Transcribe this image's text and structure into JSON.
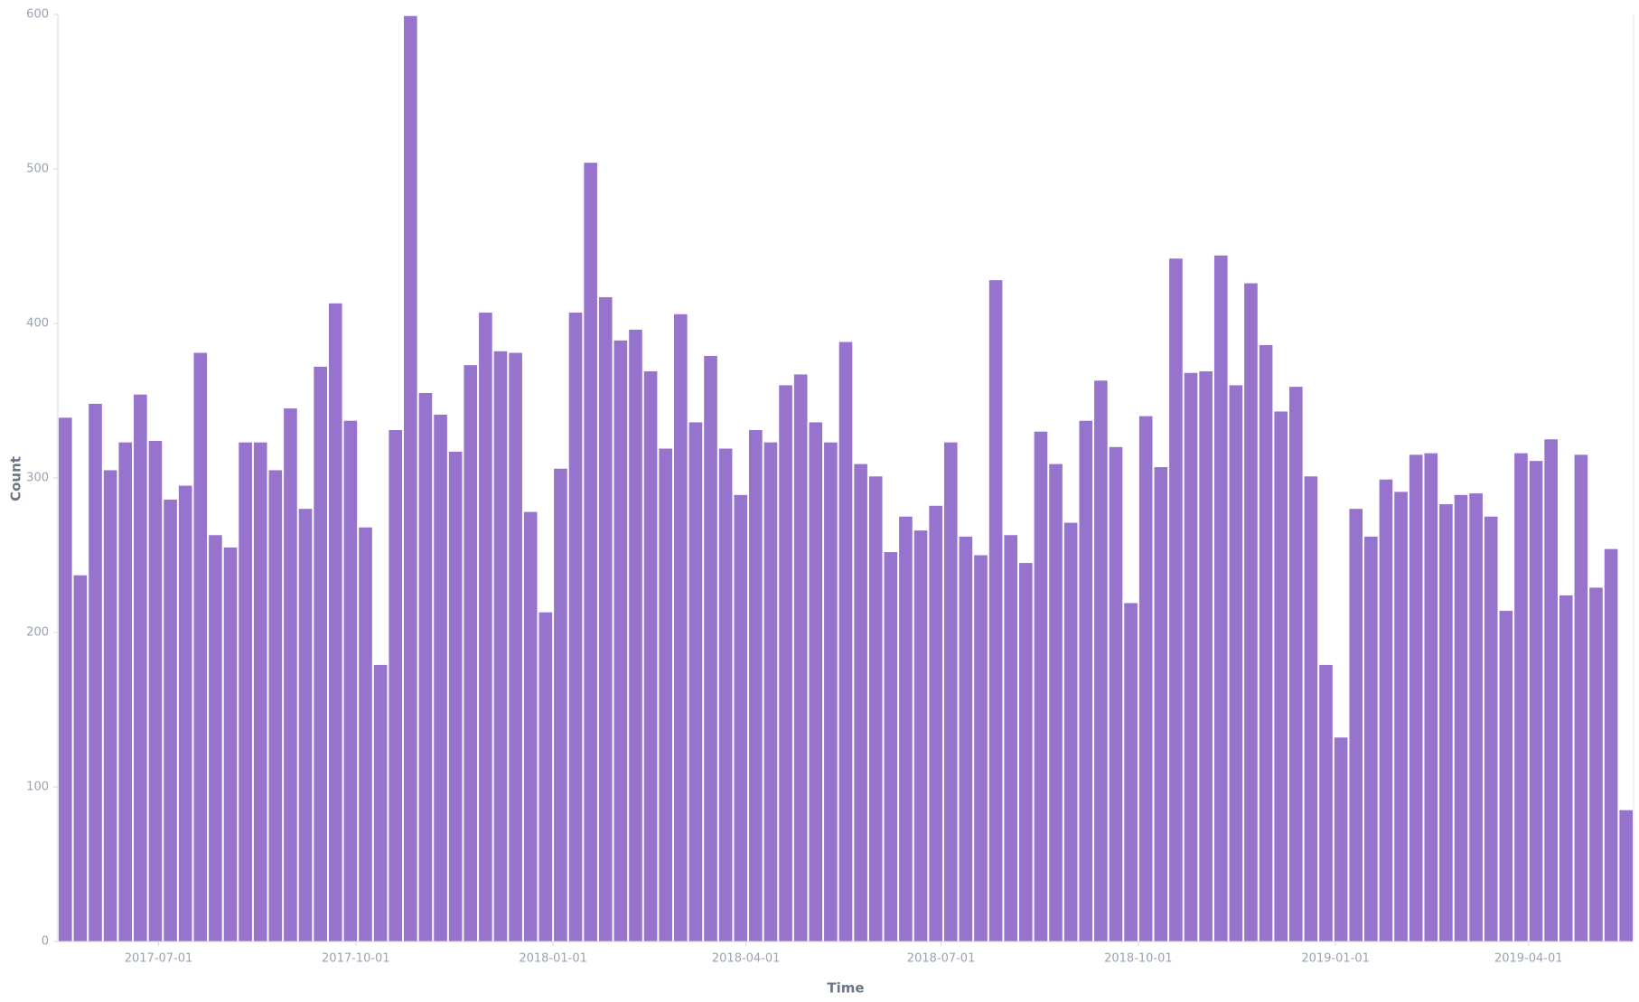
{
  "chart_data": {
    "type": "bar",
    "x_label": "Time",
    "y_label": "Count",
    "color": "#9673cd",
    "x": [
      "2017-05-15",
      "2017-05-22",
      "2017-05-29",
      "2017-06-05",
      "2017-06-12",
      "2017-06-19",
      "2017-06-26",
      "2017-07-03",
      "2017-07-10",
      "2017-07-17",
      "2017-07-24",
      "2017-07-31",
      "2017-08-07",
      "2017-08-14",
      "2017-08-21",
      "2017-08-28",
      "2017-09-04",
      "2017-09-11",
      "2017-09-18",
      "2017-09-25",
      "2017-10-02",
      "2017-10-09",
      "2017-10-16",
      "2017-10-23",
      "2017-10-30",
      "2017-11-06",
      "2017-11-13",
      "2017-11-20",
      "2017-11-27",
      "2017-12-04",
      "2017-12-11",
      "2017-12-18",
      "2017-12-25",
      "2018-01-01",
      "2018-01-08",
      "2018-01-15",
      "2018-01-22",
      "2018-01-29",
      "2018-02-05",
      "2018-02-12",
      "2018-02-19",
      "2018-02-26",
      "2018-03-05",
      "2018-03-12",
      "2018-03-19",
      "2018-03-26",
      "2018-04-02",
      "2018-04-09",
      "2018-04-16",
      "2018-04-23",
      "2018-04-30",
      "2018-05-07",
      "2018-05-14",
      "2018-05-21",
      "2018-05-28",
      "2018-06-04",
      "2018-06-11",
      "2018-06-18",
      "2018-06-25",
      "2018-07-02",
      "2018-07-09",
      "2018-07-16",
      "2018-07-23",
      "2018-07-30",
      "2018-08-06",
      "2018-08-13",
      "2018-08-20",
      "2018-08-27",
      "2018-09-03",
      "2018-09-10",
      "2018-09-17",
      "2018-09-24",
      "2018-10-01",
      "2018-10-08",
      "2018-10-15",
      "2018-10-22",
      "2018-10-29",
      "2018-11-05",
      "2018-11-12",
      "2018-11-19",
      "2018-11-26",
      "2018-12-03",
      "2018-12-10",
      "2018-12-17",
      "2018-12-24",
      "2018-12-31",
      "2019-01-07",
      "2019-01-14",
      "2019-01-21",
      "2019-01-28",
      "2019-02-04",
      "2019-02-11",
      "2019-02-18",
      "2019-02-25",
      "2019-03-04",
      "2019-03-11",
      "2019-03-18",
      "2019-03-25",
      "2019-04-01",
      "2019-04-08",
      "2019-04-15",
      "2019-04-22",
      "2019-04-29",
      "2019-05-06",
      "2019-05-13"
    ],
    "values": [
      339,
      237,
      348,
      305,
      323,
      354,
      324,
      286,
      295,
      381,
      263,
      255,
      323,
      323,
      305,
      345,
      280,
      372,
      413,
      337,
      268,
      179,
      331,
      599,
      355,
      341,
      317,
      373,
      407,
      382,
      381,
      278,
      213,
      306,
      407,
      504,
      417,
      389,
      396,
      369,
      319,
      406,
      336,
      379,
      319,
      289,
      331,
      323,
      360,
      367,
      336,
      323,
      388,
      309,
      301,
      252,
      275,
      266,
      282,
      323,
      262,
      250,
      428,
      263,
      245,
      330,
      309,
      271,
      337,
      363,
      320,
      219,
      340,
      307,
      442,
      368,
      369,
      444,
      360,
      426,
      386,
      343,
      359,
      301,
      179,
      132,
      280,
      262,
      299,
      291,
      315,
      316,
      283,
      289,
      290,
      275,
      214,
      316,
      311,
      325,
      224,
      315,
      229,
      254,
      85
    ],
    "xlim": [
      "2017-05-15",
      "2019-05-20"
    ],
    "xticks": [
      "2017-07-01",
      "2017-10-01",
      "2018-01-01",
      "2018-04-01",
      "2018-07-01",
      "2018-10-01",
      "2019-01-01",
      "2019-04-01"
    ],
    "ylim": [
      0,
      600
    ],
    "yticks": [
      0,
      100,
      200,
      300,
      400,
      500,
      600
    ]
  }
}
